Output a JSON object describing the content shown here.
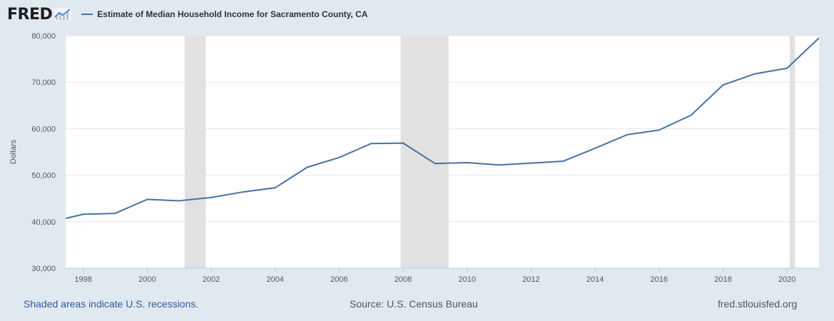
{
  "header": {
    "logo_text": "FRED",
    "logo_icon": "chart-line-icon",
    "series_title": "Estimate of Median Household Income for Sacramento County, CA",
    "series_color": "#4572a7"
  },
  "chart_data": {
    "type": "line",
    "title": "Estimate of Median Household Income for Sacramento County, CA",
    "ylabel": "Dollars",
    "xlabel": "",
    "x": [
      1997,
      1998,
      1999,
      2000,
      2001,
      2002,
      2003,
      2004,
      2005,
      2006,
      2007,
      2008,
      2009,
      2010,
      2011,
      2012,
      2013,
      2014,
      2015,
      2016,
      2017,
      2018,
      2019,
      2020,
      2021
    ],
    "values": [
      40000,
      41600,
      41800,
      44800,
      44500,
      45200,
      46400,
      47300,
      51700,
      53800,
      56800,
      56900,
      52500,
      52700,
      52200,
      52600,
      53000,
      55800,
      58700,
      59700,
      62900,
      69400,
      71800,
      73000,
      79500
    ],
    "xlim": [
      1997.45,
      2021.0
    ],
    "ylim": [
      30000,
      80000
    ],
    "yticks": [
      30000,
      40000,
      50000,
      60000,
      70000,
      80000
    ],
    "yticklabels": [
      "30,000",
      "40,000",
      "50,000",
      "60,000",
      "70,000",
      "80,000"
    ],
    "xticks": [
      1998,
      2000,
      2002,
      2004,
      2006,
      2008,
      2010,
      2012,
      2014,
      2016,
      2018,
      2020
    ],
    "xticklabels": [
      "1998",
      "2000",
      "2002",
      "2004",
      "2006",
      "2008",
      "2010",
      "2012",
      "2014",
      "2016",
      "2018",
      "2020"
    ],
    "recessions": [
      [
        2001.17,
        2001.83
      ],
      [
        2007.92,
        2009.42
      ],
      [
        2020.08,
        2020.25
      ]
    ],
    "grid": true,
    "line_color": "#4572a7",
    "recession_color": "#e1e1e1"
  },
  "footer": {
    "recession_note": "Shaded areas indicate U.S. recessions.",
    "source": "Source: U.S. Census Bureau",
    "site": "fred.stlouisfed.org"
  }
}
